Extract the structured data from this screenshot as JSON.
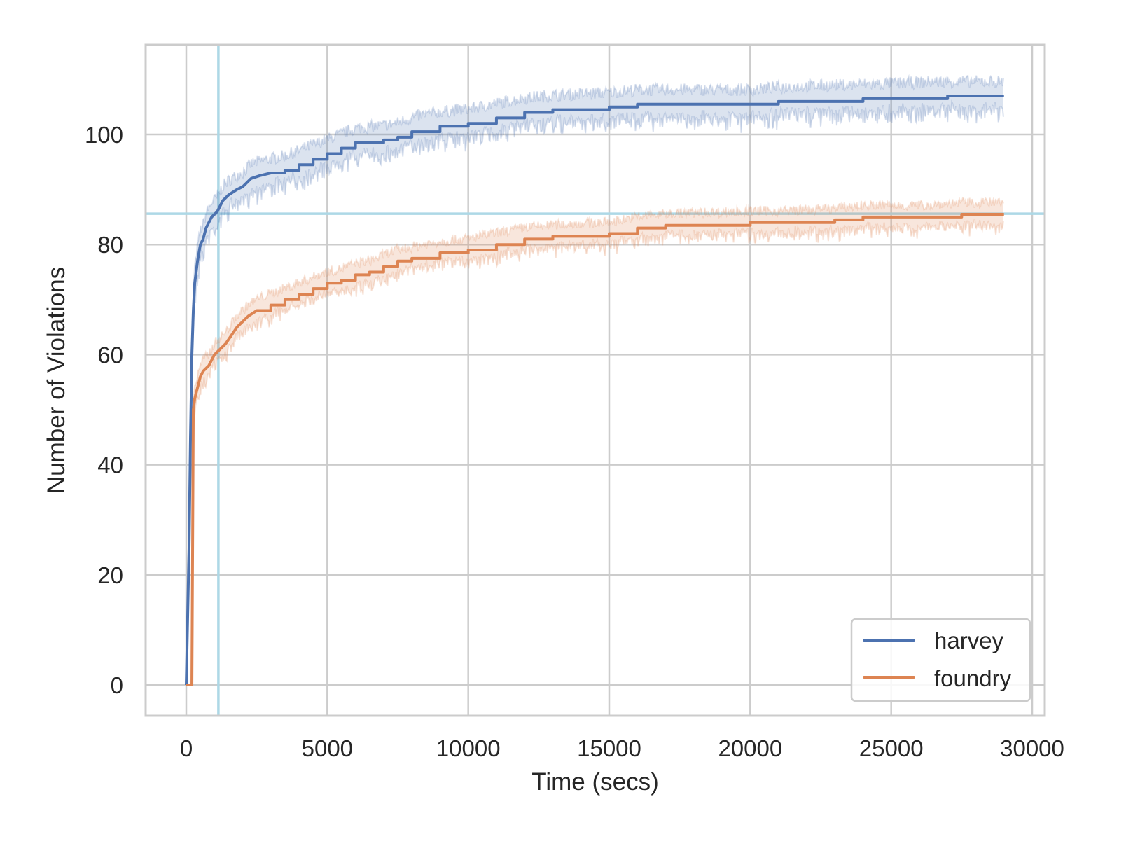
{
  "chart_data": {
    "type": "line",
    "title": "",
    "xlabel": "Time (secs)",
    "ylabel": "Number of Violations",
    "xlim": [
      -1450,
      30500
    ],
    "ylim": [
      -5.5,
      116
    ],
    "grid": true,
    "legend_position": "lower right",
    "x_ticks": [
      0,
      5000,
      10000,
      15000,
      20000,
      25000,
      30000
    ],
    "x_tick_labels": [
      "0",
      "5000",
      "10000",
      "15000",
      "20000",
      "25000",
      "30000"
    ],
    "y_ticks": [
      0,
      20,
      40,
      60,
      80,
      100
    ],
    "y_tick_labels": [
      "0",
      "20",
      "40",
      "60",
      "80",
      "100"
    ],
    "reference_lines": {
      "vertical_x": 1140,
      "horizontal_y": 85.6,
      "color": "#add8e6"
    },
    "series": [
      {
        "name": "harvey",
        "color": "#4c72b0",
        "band_color": "#4c72b0",
        "x": [
          0,
          100,
          150,
          200,
          250,
          300,
          350,
          400,
          500,
          600,
          700,
          900,
          1100,
          1300,
          1500,
          1800,
          2000,
          2300,
          2600,
          3000,
          3500,
          4000,
          4500,
          5000,
          5500,
          6000,
          7000,
          7500,
          8000,
          9000,
          10000,
          11000,
          12000,
          13000,
          15000,
          16000,
          20000,
          21000,
          24000,
          27000,
          29000
        ],
        "values": [
          0,
          25,
          45,
          60,
          68,
          73,
          75,
          77,
          80,
          81,
          83,
          85,
          86,
          88,
          89,
          90,
          90.5,
          92,
          92.5,
          93,
          93.5,
          94.5,
          95.5,
          96.5,
          97.5,
          98.5,
          99,
          99.5,
          100.5,
          101.5,
          102,
          103,
          104,
          104.5,
          105,
          105.5,
          105.5,
          106,
          106.5,
          107,
          107
        ],
        "band_width": 2.5
      },
      {
        "name": "foundry",
        "color": "#dd8452",
        "band_color": "#dd8452",
        "x": [
          0,
          200,
          250,
          300,
          400,
          500,
          600,
          800,
          1000,
          1200,
          1400,
          1600,
          1800,
          2000,
          2200,
          2500,
          3000,
          3500,
          4000,
          4500,
          5000,
          5500,
          6000,
          6500,
          7000,
          7500,
          8000,
          9000,
          10000,
          11000,
          12000,
          13000,
          15000,
          16000,
          17000,
          20000,
          21000,
          23000,
          24000,
          26000,
          27500,
          29000
        ],
        "values": [
          0,
          0,
          50,
          52,
          54,
          56,
          57,
          58,
          60,
          61,
          62,
          63.5,
          65,
          66,
          67,
          68,
          69,
          70,
          71,
          72,
          73,
          73.5,
          74.5,
          75,
          76,
          77,
          77.5,
          78.5,
          79,
          80,
          81,
          81.5,
          82,
          83,
          83.5,
          84,
          84,
          84.5,
          85,
          85,
          85.5,
          85.5
        ],
        "band_width": 2.0
      }
    ]
  },
  "legend": {
    "items": [
      {
        "label": "harvey",
        "color": "#4c72b0"
      },
      {
        "label": "foundry",
        "color": "#dd8452"
      }
    ]
  },
  "axes": {
    "xlabel": "Time (secs)",
    "ylabel": "Number of Violations",
    "x_tick_labels": [
      "0",
      "5000",
      "10000",
      "15000",
      "20000",
      "25000",
      "30000"
    ],
    "y_tick_labels": [
      "0",
      "20",
      "40",
      "60",
      "80",
      "100"
    ]
  }
}
